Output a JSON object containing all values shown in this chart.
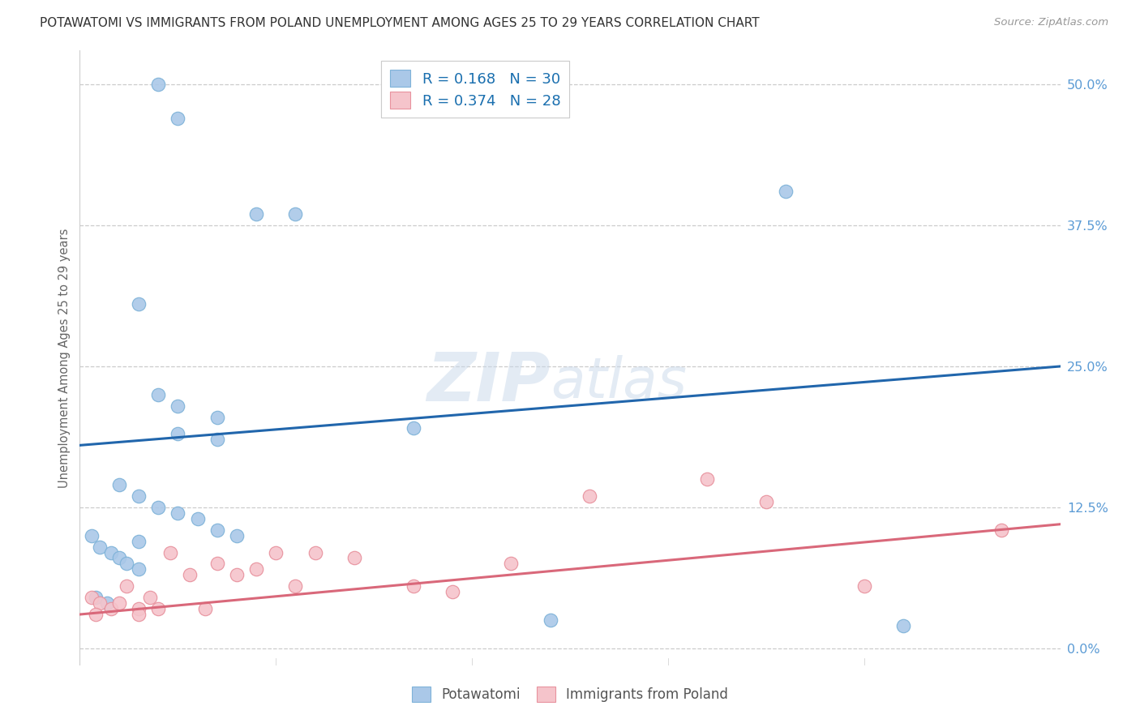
{
  "title": "POTAWATOMI VS IMMIGRANTS FROM POLAND UNEMPLOYMENT AMONG AGES 25 TO 29 YEARS CORRELATION CHART",
  "source": "Source: ZipAtlas.com",
  "ylabel": "Unemployment Among Ages 25 to 29 years",
  "ytick_values": [
    0.0,
    12.5,
    25.0,
    37.5,
    50.0
  ],
  "xlim": [
    0,
    25.0
  ],
  "ylim": [
    -1.5,
    53.0
  ],
  "blue_line_color": "#2166ac",
  "pink_line_color": "#d9687a",
  "blue_scatter_facecolor": "#aac8e8",
  "blue_scatter_edgecolor": "#7fb3d9",
  "pink_scatter_facecolor": "#f5c4cb",
  "pink_scatter_edgecolor": "#e8929e",
  "legend1_text": "R = 0.168   N = 30",
  "legend2_text": "R = 0.374   N = 28",
  "bottom_legend1": "Potawatomi",
  "bottom_legend2": "Immigrants from Poland",
  "blue_line_y0": 18.0,
  "blue_line_y1": 25.0,
  "pink_line_y0": 3.0,
  "pink_line_y1": 11.0,
  "blue_points_x": [
    2.0,
    2.5,
    4.5,
    5.5,
    1.5,
    2.0,
    3.5,
    8.5,
    2.5,
    3.5,
    1.0,
    1.5,
    2.0,
    2.5,
    3.0,
    3.5,
    4.0,
    1.5,
    2.5,
    18.0,
    21.0,
    0.3,
    0.5,
    0.8,
    1.0,
    1.2,
    1.5,
    0.4,
    0.7,
    12.0
  ],
  "blue_points_y": [
    50.0,
    47.0,
    38.5,
    38.5,
    30.5,
    22.5,
    20.5,
    19.5,
    19.0,
    18.5,
    14.5,
    13.5,
    12.5,
    12.0,
    11.5,
    10.5,
    10.0,
    9.5,
    21.5,
    40.5,
    2.0,
    10.0,
    9.0,
    8.5,
    8.0,
    7.5,
    7.0,
    4.5,
    4.0,
    2.5
  ],
  "pink_points_x": [
    0.3,
    0.5,
    0.8,
    1.0,
    1.2,
    1.5,
    1.8,
    2.0,
    2.3,
    2.8,
    3.2,
    3.5,
    4.0,
    4.5,
    5.0,
    5.5,
    6.0,
    7.0,
    8.5,
    9.5,
    11.0,
    13.0,
    16.0,
    17.5,
    20.0,
    23.5,
    0.4,
    1.5
  ],
  "pink_points_y": [
    4.5,
    4.0,
    3.5,
    4.0,
    5.5,
    3.5,
    4.5,
    3.5,
    8.5,
    6.5,
    3.5,
    7.5,
    6.5,
    7.0,
    8.5,
    5.5,
    8.5,
    8.0,
    5.5,
    5.0,
    7.5,
    13.5,
    15.0,
    13.0,
    5.5,
    10.5,
    3.0,
    3.0
  ],
  "watermark_zip": "ZIP",
  "watermark_atlas": "atlas",
  "background_color": "#ffffff",
  "grid_color": "#cccccc",
  "tick_label_color": "#5b9bd5",
  "axis_label_color": "#666666",
  "title_fontsize": 11.0,
  "source_fontsize": 9.5,
  "tick_fontsize": 11.5,
  "legend_text_color": "#1a6faf"
}
